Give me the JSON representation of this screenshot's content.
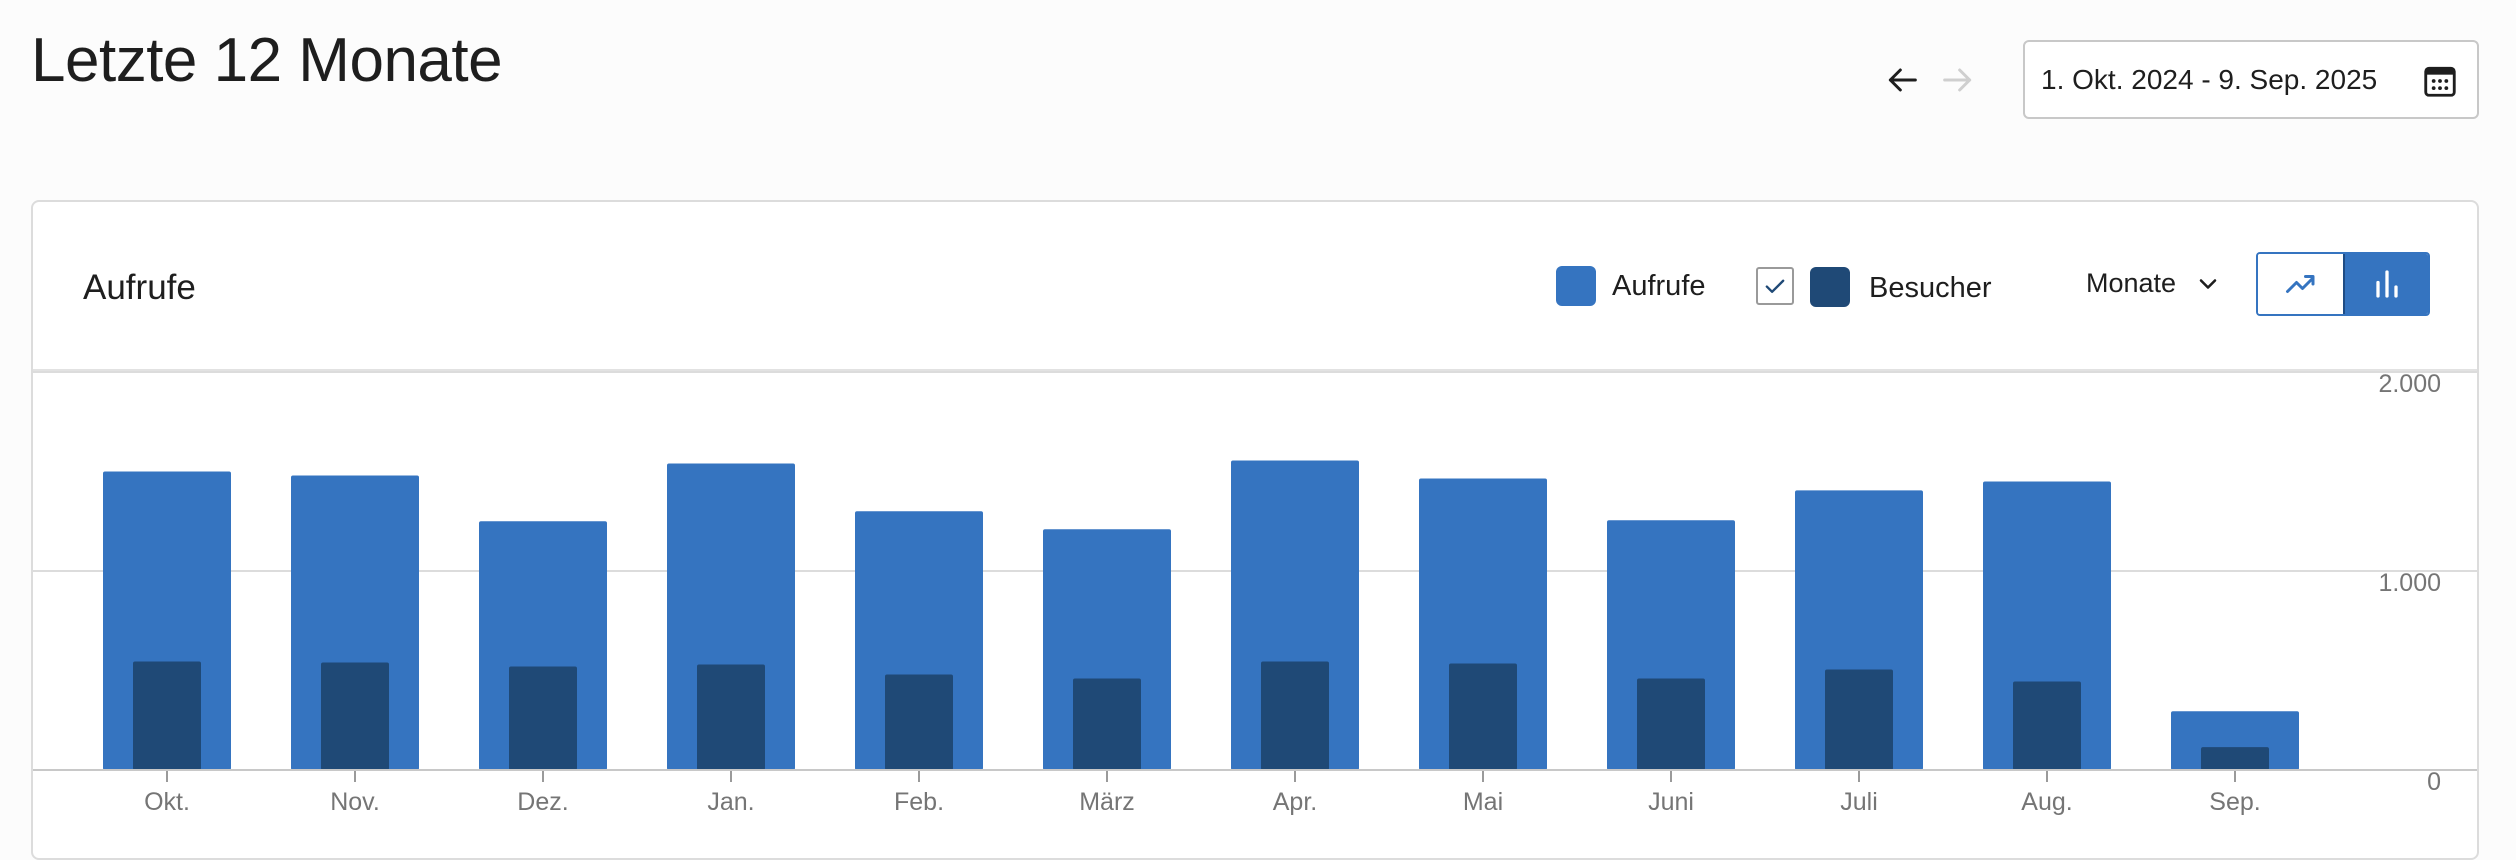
{
  "header": {
    "title": "Letzte 12 Monate",
    "date_range": "1. Okt. 2024 - 9. Sep. 2025"
  },
  "icons": {
    "prev": "arrow-left-icon",
    "next": "arrow-right-icon",
    "calendar": "calendar-icon",
    "check": "check-icon",
    "chevron": "chevron-down-icon",
    "line_chart": "trending-up-icon",
    "bar_chart": "bar-chart-icon"
  },
  "card": {
    "title": "Aufrufe",
    "legend": {
      "views_label": "Aufrufe",
      "visitors_label": "Besucher",
      "visitors_checked": true
    },
    "period": "Monate",
    "active_view": "bar"
  },
  "colors": {
    "views": "#3574c0",
    "visitors": "#1f4976",
    "grid": "#dcdcdc",
    "axis_text": "#757575"
  },
  "chart_data": {
    "type": "bar",
    "categories": [
      "Okt.",
      "Nov.",
      "Dez.",
      "Jan.",
      "Feb.",
      "März",
      "Apr.",
      "Mai",
      "Juni",
      "Juli",
      "Aug.",
      "Sep."
    ],
    "series": [
      {
        "name": "Aufrufe",
        "values": [
          1500,
          1480,
          1250,
          1540,
          1300,
          1210,
          1555,
          1465,
          1255,
          1405,
          1450,
          295
        ]
      },
      {
        "name": "Besucher",
        "values": [
          545,
          540,
          520,
          530,
          480,
          460,
          545,
          535,
          460,
          505,
          445,
          115
        ]
      }
    ],
    "ylim": [
      0,
      2000
    ],
    "yticks": [
      "0",
      "1.000",
      "2.000"
    ],
    "ytick_values": [
      0,
      1000,
      2000
    ],
    "grid": true,
    "xlabel": "",
    "ylabel": ""
  }
}
